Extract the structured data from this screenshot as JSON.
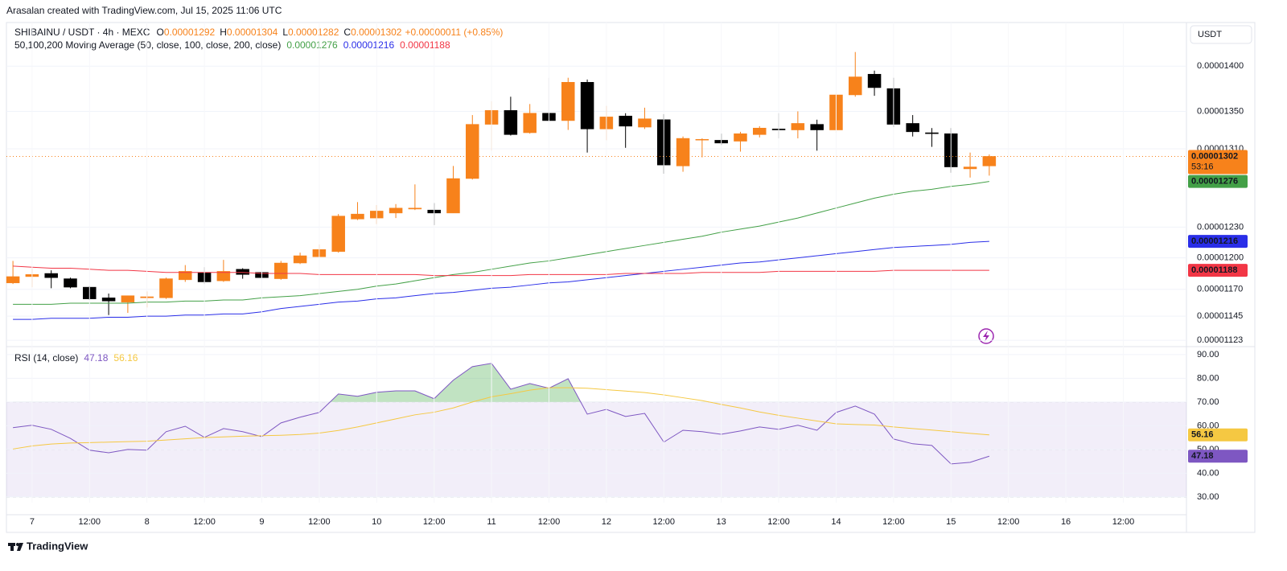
{
  "header": "Arasalan created with TradingView.com, Jul 15, 2025 11:06 UTC",
  "footer": "TradingView",
  "chart_data": [
    {
      "type": "candlestick",
      "title": "SHIBAINU / USDT · 4h · MEXC",
      "ohlc_letters": [
        "O",
        "H",
        "L",
        "C"
      ],
      "change": "+0.00000011 (+0.85%)",
      "currency": "USDT",
      "countdown": "53:16",
      "ma_title": "50,100,200 Moving Average (50, close, 100, close, 200, close)",
      "up_color": "#f7821b",
      "down_color": "#000000",
      "log_scale": true,
      "grid": true,
      "open": [
        1.176e-05,
        1.182e-05,
        1.185e-05,
        1.18e-05,
        1.172e-05,
        1.162e-05,
        1.158e-05,
        1.162e-05,
        1.162e-05,
        1.179e-05,
        1.186e-05,
        1.178e-05,
        1.189e-05,
        1.186e-05,
        1.18e-05,
        1.195e-05,
        1.201e-05,
        1.206e-05,
        1.238e-05,
        1.239e-05,
        1.244e-05,
        1.248e-05,
        1.247e-05,
        1.244e-05,
        1.279e-05,
        1.336e-05,
        1.351e-05,
        1.327e-05,
        1.348e-05,
        1.34e-05,
        1.382e-05,
        1.331e-05,
        1.345e-05,
        1.333e-05,
        1.341e-05,
        1.292e-05,
        1.32e-05,
        1.319e-05,
        1.318e-05,
        1.325e-05,
        1.331e-05,
        1.33e-05,
        1.336e-05,
        1.33e-05,
        1.368e-05,
        1.391e-05,
        1.375e-05,
        1.337e-05,
        1.327e-05,
        1.326e-05,
        1.289e-05,
        1.292e-05
      ],
      "high": [
        1.197e-05,
        1.19e-05,
        1.188e-05,
        1.181e-05,
        1.173e-05,
        1.166e-05,
        1.164e-05,
        1.168e-05,
        1.181e-05,
        1.193e-05,
        1.191e-05,
        1.198e-05,
        1.19e-05,
        1.188e-05,
        1.197e-05,
        1.205e-05,
        1.213e-05,
        1.243e-05,
        1.255e-05,
        1.252e-05,
        1.253e-05,
        1.273e-05,
        1.254e-05,
        1.292e-05,
        1.346e-05,
        1.361e-05,
        1.366e-05,
        1.358e-05,
        1.387e-05,
        1.387e-05,
        1.385e-05,
        1.356e-05,
        1.348e-05,
        1.354e-05,
        1.347e-05,
        1.323e-05,
        1.321e-05,
        1.326e-05,
        1.328e-05,
        1.334e-05,
        1.348e-05,
        1.35e-05,
        1.341e-05,
        1.37e-05,
        1.416e-05,
        1.395e-05,
        1.387e-05,
        1.346e-05,
        1.332e-05,
        1.332e-05,
        1.306e-05,
        1.304e-05
      ],
      "low": [
        1.175e-05,
        1.172e-05,
        1.171e-05,
        1.171e-05,
        1.16e-05,
        1.146e-05,
        1.148e-05,
        1.153e-05,
        1.161e-05,
        1.177e-05,
        1.175e-05,
        1.177e-05,
        1.18e-05,
        1.179e-05,
        1.179e-05,
        1.194e-05,
        1.201e-05,
        1.205e-05,
        1.237e-05,
        1.233e-05,
        1.239e-05,
        1.247e-05,
        1.232e-05,
        1.244e-05,
        1.278e-05,
        1.308e-05,
        1.324e-05,
        1.326e-05,
        1.339e-05,
        1.33e-05,
        1.306e-05,
        1.319e-05,
        1.311e-05,
        1.331e-05,
        1.284e-05,
        1.286e-05,
        1.301e-05,
        1.314e-05,
        1.307e-05,
        1.322e-05,
        1.321e-05,
        1.321e-05,
        1.308e-05,
        1.327e-05,
        1.366e-05,
        1.367e-05,
        1.333e-05,
        1.323e-05,
        1.312e-05,
        1.285e-05,
        1.28e-05,
        1.282e-05
      ],
      "close": [
        1.182e-05,
        1.184e-05,
        1.181e-05,
        1.172e-05,
        1.161e-05,
        1.159e-05,
        1.164e-05,
        1.163e-05,
        1.18e-05,
        1.187e-05,
        1.177e-05,
        1.187e-05,
        1.184e-05,
        1.181e-05,
        1.195e-05,
        1.202e-05,
        1.208e-05,
        1.241e-05,
        1.243e-05,
        1.246e-05,
        1.249e-05,
        1.249e-05,
        1.244e-05,
        1.279e-05,
        1.336e-05,
        1.351e-05,
        1.325e-05,
        1.348e-05,
        1.34e-05,
        1.382e-05,
        1.331e-05,
        1.344e-05,
        1.334e-05,
        1.342e-05,
        1.293e-05,
        1.321e-05,
        1.32e-05,
        1.316e-05,
        1.326e-05,
        1.332e-05,
        1.33e-05,
        1.337e-05,
        1.33e-05,
        1.368e-05,
        1.388e-05,
        1.376e-05,
        1.336e-05,
        1.328e-05,
        1.326e-05,
        1.291e-05,
        1.291e-05,
        1.302e-05
      ],
      "series": [
        {
          "color": "#43a047",
          "values": [
            1.156e-05,
            1.156e-05,
            1.156e-05,
            1.157e-05,
            1.157e-05,
            1.157e-05,
            1.157e-05,
            1.158e-05,
            1.158e-05,
            1.159e-05,
            1.159e-05,
            1.16e-05,
            1.16e-05,
            1.162e-05,
            1.163e-05,
            1.164e-05,
            1.166e-05,
            1.168e-05,
            1.17e-05,
            1.173e-05,
            1.175e-05,
            1.178e-05,
            1.181e-05,
            1.184e-05,
            1.186e-05,
            1.189e-05,
            1.192e-05,
            1.195e-05,
            1.197e-05,
            1.2e-05,
            1.203e-05,
            1.206e-05,
            1.209e-05,
            1.212e-05,
            1.215e-05,
            1.218e-05,
            1.221e-05,
            1.225e-05,
            1.228e-05,
            1.231e-05,
            1.235e-05,
            1.239e-05,
            1.244e-05,
            1.249e-05,
            1.254e-05,
            1.259e-05,
            1.263e-05,
            1.266e-05,
            1.268e-05,
            1.271e-05,
            1.273e-05,
            1.276e-05
          ]
        },
        {
          "color": "#2a2ee8",
          "values": [
            1.142e-05,
            1.142e-05,
            1.143e-05,
            1.143e-05,
            1.143e-05,
            1.144e-05,
            1.144e-05,
            1.145e-05,
            1.145e-05,
            1.146e-05,
            1.146e-05,
            1.147e-05,
            1.147e-05,
            1.149e-05,
            1.152e-05,
            1.154e-05,
            1.156e-05,
            1.158e-05,
            1.159e-05,
            1.161e-05,
            1.162e-05,
            1.164e-05,
            1.166e-05,
            1.167e-05,
            1.169e-05,
            1.171e-05,
            1.172e-05,
            1.174e-05,
            1.176e-05,
            1.177e-05,
            1.179e-05,
            1.181e-05,
            1.183e-05,
            1.185e-05,
            1.187e-05,
            1.189e-05,
            1.191e-05,
            1.193e-05,
            1.195e-05,
            1.196e-05,
            1.198e-05,
            1.2e-05,
            1.202e-05,
            1.204e-05,
            1.206e-05,
            1.208e-05,
            1.21e-05,
            1.211e-05,
            1.212e-05,
            1.213e-05,
            1.215e-05,
            1.216e-05
          ]
        },
        {
          "color": "#f23645",
          "values": [
            1.192e-05,
            1.191e-05,
            1.19e-05,
            1.19e-05,
            1.189e-05,
            1.188e-05,
            1.188e-05,
            1.187e-05,
            1.186e-05,
            1.186e-05,
            1.186e-05,
            1.186e-05,
            1.186e-05,
            1.185e-05,
            1.185e-05,
            1.185e-05,
            1.184e-05,
            1.184e-05,
            1.184e-05,
            1.184e-05,
            1.184e-05,
            1.184e-05,
            1.183e-05,
            1.183e-05,
            1.183e-05,
            1.183e-05,
            1.183e-05,
            1.184e-05,
            1.184e-05,
            1.184e-05,
            1.184e-05,
            1.184e-05,
            1.185e-05,
            1.185e-05,
            1.185e-05,
            1.185e-05,
            1.186e-05,
            1.186e-05,
            1.186e-05,
            1.186e-05,
            1.187e-05,
            1.187e-05,
            1.187e-05,
            1.187e-05,
            1.187e-05,
            1.187e-05,
            1.188e-05,
            1.188e-05,
            1.188e-05,
            1.188e-05,
            1.188e-05,
            1.188e-05
          ]
        }
      ],
      "xlim": [
        -0.34,
        61.3
      ],
      "ylim": [
        1.118e-05,
        1.45e-05
      ],
      "yticks": [
        {
          "value": 1.4e-05,
          "label": "0.00001400"
        },
        {
          "value": 1.35e-05,
          "label": "0.00001350"
        },
        {
          "value": 1.31e-05,
          "label": "0.00001310"
        },
        {
          "value": 1.23e-05,
          "label": "0.00001230"
        },
        {
          "value": 1.2e-05,
          "label": "0.00001200"
        },
        {
          "value": 1.17e-05,
          "label": "0.00001170"
        },
        {
          "value": 1.145e-05,
          "label": "0.00001145"
        },
        {
          "value": 1.123e-05,
          "label": "0.00001123"
        }
      ]
    },
    {
      "type": "line",
      "title": "RSI (14, close)",
      "grid": true,
      "series": [
        {
          "color": "#7e57c2",
          "values": [
            59.2,
            60.2,
            58.5,
            54.7,
            49.7,
            48.6,
            50,
            49.7,
            57.5,
            59.8,
            55.1,
            58.8,
            57.5,
            55.4,
            61.2,
            63.6,
            65.6,
            73.4,
            72.4,
            74.1,
            74.7,
            74.7,
            71.4,
            79.2,
            84.9,
            86.3,
            75.4,
            77.8,
            75.8,
            79.8,
            64.9,
            66.9,
            63.9,
            65.2,
            53.1,
            58.1,
            57.5,
            56.4,
            57.8,
            59.5,
            58.5,
            60.2,
            58.1,
            65.6,
            68.3,
            64.9,
            54.4,
            52.4,
            51.7,
            43.9,
            44.6,
            47.18
          ]
        },
        {
          "color": "#f5c842",
          "values": [
            50.2,
            51.5,
            52.3,
            52.7,
            52.9,
            53.1,
            53.3,
            53.5,
            54,
            54.5,
            55,
            55.3,
            55.6,
            55.8,
            56,
            56.3,
            56.9,
            58,
            59.5,
            61.2,
            62.9,
            64.6,
            65.7,
            67.5,
            70,
            72.2,
            73.5,
            75,
            76,
            76,
            75.8,
            75.2,
            74.6,
            74,
            73,
            71.8,
            70.6,
            69,
            67.5,
            65.8,
            64.4,
            63.2,
            62,
            60.8,
            60.5,
            60.3,
            59.5,
            58.8,
            58.2,
            57.5,
            56.8,
            56.16
          ]
        }
      ],
      "bands": [
        70,
        50,
        30
      ],
      "band_fill": "#7e57c2",
      "overbought_fill": "#4caf50",
      "xlim": [
        -0.34,
        61.3
      ],
      "ylim": [
        27.6,
        93
      ],
      "yticks": [
        {
          "value": 90,
          "label": "90.00"
        },
        {
          "value": 80,
          "label": "80.00"
        },
        {
          "value": 70,
          "label": "70.00"
        },
        {
          "value": 60,
          "label": "60.00"
        },
        {
          "value": 50,
          "label": "50.00"
        },
        {
          "value": 40,
          "label": "40.00"
        },
        {
          "value": 30,
          "label": "30.00"
        }
      ],
      "xticks": [
        {
          "value": 1,
          "label": "7"
        },
        {
          "value": 4,
          "label": "12:00"
        },
        {
          "value": 7,
          "label": "8"
        },
        {
          "value": 10,
          "label": "12:00"
        },
        {
          "value": 13,
          "label": "9"
        },
        {
          "value": 16,
          "label": "12:00"
        },
        {
          "value": 19,
          "label": "10"
        },
        {
          "value": 22,
          "label": "12:00"
        },
        {
          "value": 25,
          "label": "11"
        },
        {
          "value": 28,
          "label": "12:00"
        },
        {
          "value": 31,
          "label": "12"
        },
        {
          "value": 34,
          "label": "12:00"
        },
        {
          "value": 37,
          "label": "13"
        },
        {
          "value": 40,
          "label": "12:00"
        },
        {
          "value": 43,
          "label": "14"
        },
        {
          "value": 46,
          "label": "12:00"
        },
        {
          "value": 49,
          "label": "15"
        },
        {
          "value": 52,
          "label": "12:00"
        },
        {
          "value": 55,
          "label": "16"
        },
        {
          "value": 58,
          "label": "12:00"
        }
      ]
    }
  ]
}
